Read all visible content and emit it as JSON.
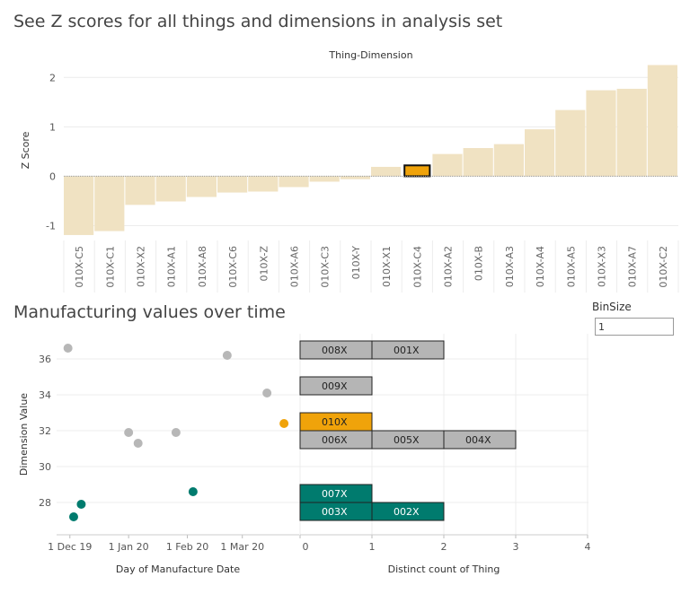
{
  "zscore_section": {
    "title": "See Z scores for all things and dimensions in analysis set",
    "header": "Thing-Dimension"
  },
  "manufacturing_section": {
    "title": "Manufacturing values over time"
  },
  "binsize": {
    "label": "BinSize",
    "value": "1"
  },
  "colors": {
    "bar_fill": "#f0e2c2",
    "highlight": "#f0a30a",
    "grey_point": "#b7b7b7",
    "teal": "#007b6e",
    "gridline": "#ececec",
    "histogram_grey": "#b5b5b5"
  },
  "chart_data": [
    {
      "type": "bar",
      "title": "Thing-Dimension",
      "ylabel": "Z Score",
      "xlabel": "",
      "ylim": [
        -1.3,
        2.35
      ],
      "yticks": [
        -1,
        0,
        1,
        2
      ],
      "categories": [
        "010X-C5",
        "010X-C1",
        "010X-X2",
        "010X-A1",
        "010X-A8",
        "010X-C6",
        "010X-Z",
        "010X-A6",
        "010X-C3",
        "010X-Y",
        "010X-X1",
        "010X-C4",
        "010X-A2",
        "010X-B",
        "010X-A3",
        "010X-A4",
        "010X-A5",
        "010X-X3",
        "010X-A7",
        "010X-C2"
      ],
      "values": [
        -1.19,
        -1.11,
        -0.58,
        -0.51,
        -0.42,
        -0.33,
        -0.31,
        -0.22,
        -0.11,
        -0.06,
        0.19,
        0.22,
        0.45,
        0.57,
        0.65,
        0.95,
        1.34,
        1.74,
        1.77,
        2.25
      ],
      "highlighted": "010X-C4"
    },
    {
      "type": "scatter",
      "xlabel": "Day of Manufacture Date",
      "ylabel": "Dimension Value",
      "xticks": [
        "1 Dec 19",
        "1 Jan 20",
        "1 Feb 20",
        "1 Mar 20"
      ],
      "xlim": [
        "2019-11-24",
        "2020-03-31"
      ],
      "ylim": [
        26.2,
        37.4
      ],
      "yticks": [
        28,
        30,
        32,
        34,
        36
      ],
      "points": [
        {
          "x": "2019-11-30",
          "y": 36.6,
          "group": "grey"
        },
        {
          "x": "2019-12-03",
          "y": 27.2,
          "group": "teal"
        },
        {
          "x": "2019-12-07",
          "y": 27.9,
          "group": "teal"
        },
        {
          "x": "2020-01-01",
          "y": 31.9,
          "group": "grey"
        },
        {
          "x": "2020-01-06",
          "y": 31.3,
          "group": "grey"
        },
        {
          "x": "2020-01-26",
          "y": 31.9,
          "group": "grey"
        },
        {
          "x": "2020-02-04",
          "y": 28.6,
          "group": "teal"
        },
        {
          "x": "2020-02-22",
          "y": 36.2,
          "group": "grey"
        },
        {
          "x": "2020-03-14",
          "y": 34.1,
          "group": "grey"
        },
        {
          "x": "2020-03-23",
          "y": 32.4,
          "group": "highlight"
        }
      ]
    },
    {
      "type": "bar",
      "orientation": "horizontal-stacked",
      "xlabel": "Distinct count of Thing",
      "xlim": [
        0,
        4
      ],
      "xticks": [
        0,
        1,
        2,
        3,
        4
      ],
      "rows": [
        {
          "y": 36.5,
          "group": "grey",
          "things": [
            "008X",
            "001X"
          ]
        },
        {
          "y": 34.5,
          "group": "grey",
          "things": [
            "009X"
          ]
        },
        {
          "y": 32.5,
          "group": "highlight",
          "things": [
            "010X"
          ]
        },
        {
          "y": 31.5,
          "group": "grey",
          "things": [
            "006X",
            "005X",
            "004X"
          ]
        },
        {
          "y": 28.5,
          "group": "teal",
          "things": [
            "007X"
          ]
        },
        {
          "y": 27.5,
          "group": "teal",
          "things": [
            "003X",
            "002X"
          ]
        }
      ]
    }
  ]
}
